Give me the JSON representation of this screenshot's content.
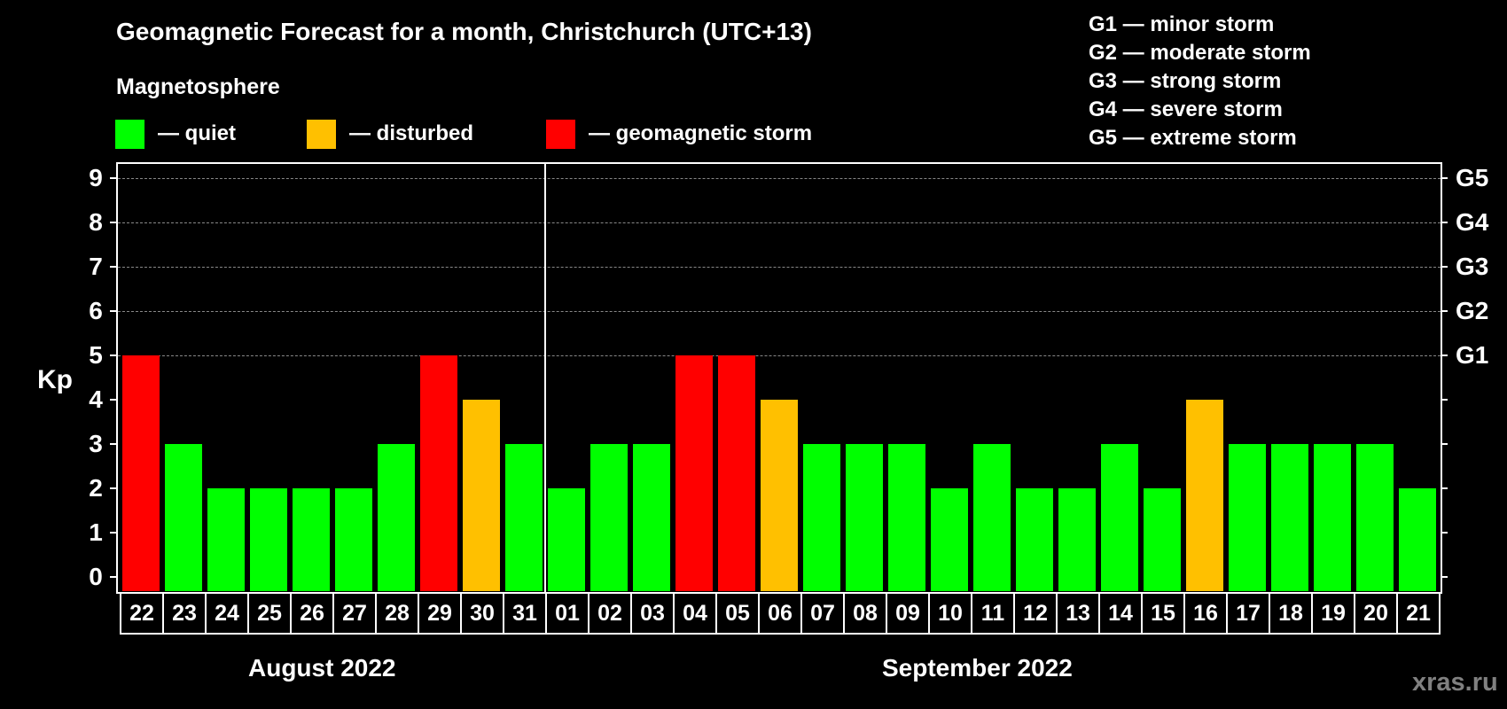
{
  "header": {
    "title": "Geomagnetic Forecast for a month, Christchurch (UTC+13)",
    "subtitle": "Magnetosphere"
  },
  "legend": {
    "items": [
      {
        "key": "quiet",
        "label": "— quiet",
        "color": "#00ff00"
      },
      {
        "key": "disturbed",
        "label": "— disturbed",
        "color": "#ffc000"
      },
      {
        "key": "storm",
        "label": "— geomagnetic storm",
        "color": "#ff0000"
      }
    ]
  },
  "storm_scale": {
    "items": [
      {
        "label": "G1 — minor storm"
      },
      {
        "label": "G2 — moderate storm"
      },
      {
        "label": "G3 — strong storm"
      },
      {
        "label": "G4 — severe storm"
      },
      {
        "label": "G5 — extreme storm"
      }
    ]
  },
  "axis": {
    "ylabel": "Kp",
    "yticks": [
      "0",
      "1",
      "2",
      "3",
      "4",
      "5",
      "6",
      "7",
      "8",
      "9"
    ],
    "right_ticks": {
      "5": "G1",
      "6": "G2",
      "7": "G3",
      "8": "G4",
      "9": "G5"
    }
  },
  "months": {
    "first": "August 2022",
    "second": "September 2022"
  },
  "watermark": "xras.ru",
  "colors": {
    "quiet": "#00ff00",
    "disturbed": "#ffc000",
    "storm": "#ff0000",
    "background": "#000000",
    "gridline": "#888888"
  },
  "chart_data": {
    "type": "bar",
    "title": "Geomagnetic Forecast for a month, Christchurch (UTC+13)",
    "xlabel": "",
    "ylabel": "Kp",
    "ylim": [
      0,
      9
    ],
    "grid": true,
    "categories": [
      "22",
      "23",
      "24",
      "25",
      "26",
      "27",
      "28",
      "29",
      "30",
      "31",
      "01",
      "02",
      "03",
      "04",
      "05",
      "06",
      "07",
      "08",
      "09",
      "10",
      "11",
      "12",
      "13",
      "14",
      "15",
      "16",
      "17",
      "18",
      "19",
      "20",
      "21"
    ],
    "months": [
      {
        "label": "August 2022",
        "days": [
          "22",
          "23",
          "24",
          "25",
          "26",
          "27",
          "28",
          "29",
          "30",
          "31"
        ]
      },
      {
        "label": "September 2022",
        "days": [
          "01",
          "02",
          "03",
          "04",
          "05",
          "06",
          "07",
          "08",
          "09",
          "10",
          "11",
          "12",
          "13",
          "14",
          "15",
          "16",
          "17",
          "18",
          "19",
          "20",
          "21"
        ]
      }
    ],
    "values": [
      5,
      3,
      2,
      2,
      2,
      2,
      3,
      5,
      4,
      3,
      2,
      3,
      3,
      5,
      5,
      4,
      3,
      3,
      3,
      2,
      3,
      2,
      2,
      3,
      2,
      4,
      3,
      3,
      3,
      3,
      2
    ],
    "status": [
      "storm",
      "quiet",
      "quiet",
      "quiet",
      "quiet",
      "quiet",
      "quiet",
      "storm",
      "disturbed",
      "quiet",
      "quiet",
      "quiet",
      "quiet",
      "storm",
      "storm",
      "disturbed",
      "quiet",
      "quiet",
      "quiet",
      "quiet",
      "quiet",
      "quiet",
      "quiet",
      "quiet",
      "quiet",
      "disturbed",
      "quiet",
      "quiet",
      "quiet",
      "quiet",
      "quiet"
    ],
    "legend": [
      "quiet",
      "disturbed",
      "geomagnetic storm"
    ],
    "secondary_axis": {
      "5": "G1",
      "6": "G2",
      "7": "G3",
      "8": "G4",
      "9": "G5"
    }
  }
}
